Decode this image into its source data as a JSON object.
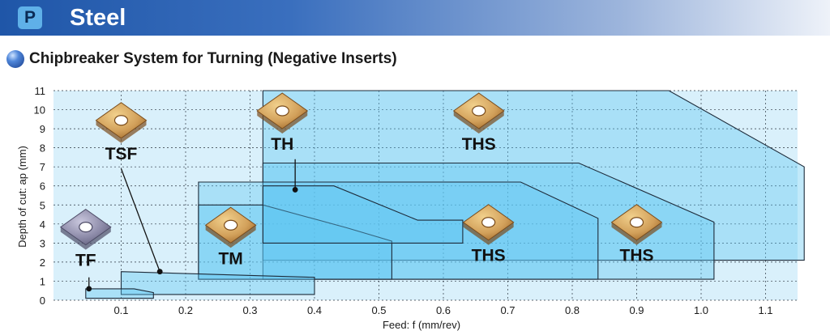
{
  "header": {
    "badge": "P",
    "title": "Steel"
  },
  "section": {
    "title": "Chipbreaker System for Turning (Negative Inserts)"
  },
  "chart_data": {
    "type": "area",
    "title": "Chipbreaker System for Turning (Negative Inserts)",
    "xlabel": "Feed: f (mm/rev)",
    "ylabel": "Depth of cut: ap (mm)",
    "xlim": [
      0,
      1.16
    ],
    "ylim": [
      0,
      11
    ],
    "grid": true,
    "x_ticks": [
      "0.1",
      "0.2",
      "0.3",
      "0.4",
      "0.5",
      "0.6",
      "0.7",
      "0.8",
      "0.9",
      "1.0",
      "1.1"
    ],
    "y_ticks": [
      "0",
      "1",
      "2",
      "3",
      "4",
      "5",
      "6",
      "7",
      "8",
      "9",
      "10",
      "11"
    ],
    "colors": {
      "plot_background": "#d9f0fb",
      "region_fill": "#5cc4f1",
      "region_outline": "#1d2b3a",
      "insert_gold": "#d2a05a",
      "insert_grey": "#8c8aa8"
    },
    "series": [
      {
        "name": "TF",
        "points": [
          [
            0.045,
            0.1
          ],
          [
            0.045,
            0.6
          ],
          [
            0.12,
            0.6
          ],
          [
            0.15,
            0.4
          ],
          [
            0.15,
            0.1
          ]
        ],
        "label_at": [
          0.045,
          1.8
        ],
        "insert": "grey"
      },
      {
        "name": "TSF",
        "points": [
          [
            0.1,
            0.3
          ],
          [
            0.1,
            1.5
          ],
          [
            0.4,
            1.2
          ],
          [
            0.4,
            0.3
          ]
        ],
        "label_at": [
          0.1,
          7.4
        ],
        "insert": "gold"
      },
      {
        "name": "TM",
        "points": [
          [
            0.22,
            1.1
          ],
          [
            0.22,
            5.0
          ],
          [
            0.32,
            5.0
          ],
          [
            0.45,
            3.8
          ],
          [
            0.52,
            3.1
          ],
          [
            0.52,
            1.1
          ]
        ],
        "label_at": [
          0.27,
          1.9
        ],
        "insert": "gold"
      },
      {
        "name": "TH",
        "points": [
          [
            0.32,
            3.0
          ],
          [
            0.32,
            6.0
          ],
          [
            0.43,
            6.0
          ],
          [
            0.56,
            4.2
          ],
          [
            0.63,
            4.2
          ],
          [
            0.63,
            3.0
          ]
        ],
        "label_at": [
          0.35,
          7.9
        ],
        "insert": "gold"
      },
      {
        "name": "THS",
        "points": [
          [
            0.22,
            1.1
          ],
          [
            0.22,
            6.2
          ],
          [
            0.72,
            6.2
          ],
          [
            0.84,
            4.3
          ],
          [
            0.84,
            1.1
          ]
        ],
        "label_at": [
          0.67,
          2.05
        ],
        "insert": "gold"
      },
      {
        "name": "THS",
        "points": [
          [
            0.32,
            1.1
          ],
          [
            0.32,
            7.2
          ],
          [
            0.81,
            7.2
          ],
          [
            1.02,
            4.1
          ],
          [
            1.02,
            1.1
          ]
        ],
        "label_at": [
          0.9,
          2.05
        ],
        "insert": "gold"
      },
      {
        "name": "THS",
        "points": [
          [
            0.32,
            2.1
          ],
          [
            0.32,
            11.0
          ],
          [
            0.95,
            11.0
          ],
          [
            1.16,
            7.0
          ],
          [
            1.16,
            2.1
          ]
        ],
        "label_at": [
          0.655,
          7.9
        ],
        "insert": "gold"
      }
    ],
    "leaders": [
      {
        "label": "TF",
        "from": [
          0.05,
          1.2
        ],
        "to": [
          0.05,
          0.6
        ]
      },
      {
        "label": "TSF",
        "from": [
          0.1,
          6.9
        ],
        "to": [
          0.16,
          1.5
        ]
      },
      {
        "label": "TH",
        "from": [
          0.37,
          7.4
        ],
        "to": [
          0.37,
          5.8
        ]
      }
    ]
  }
}
